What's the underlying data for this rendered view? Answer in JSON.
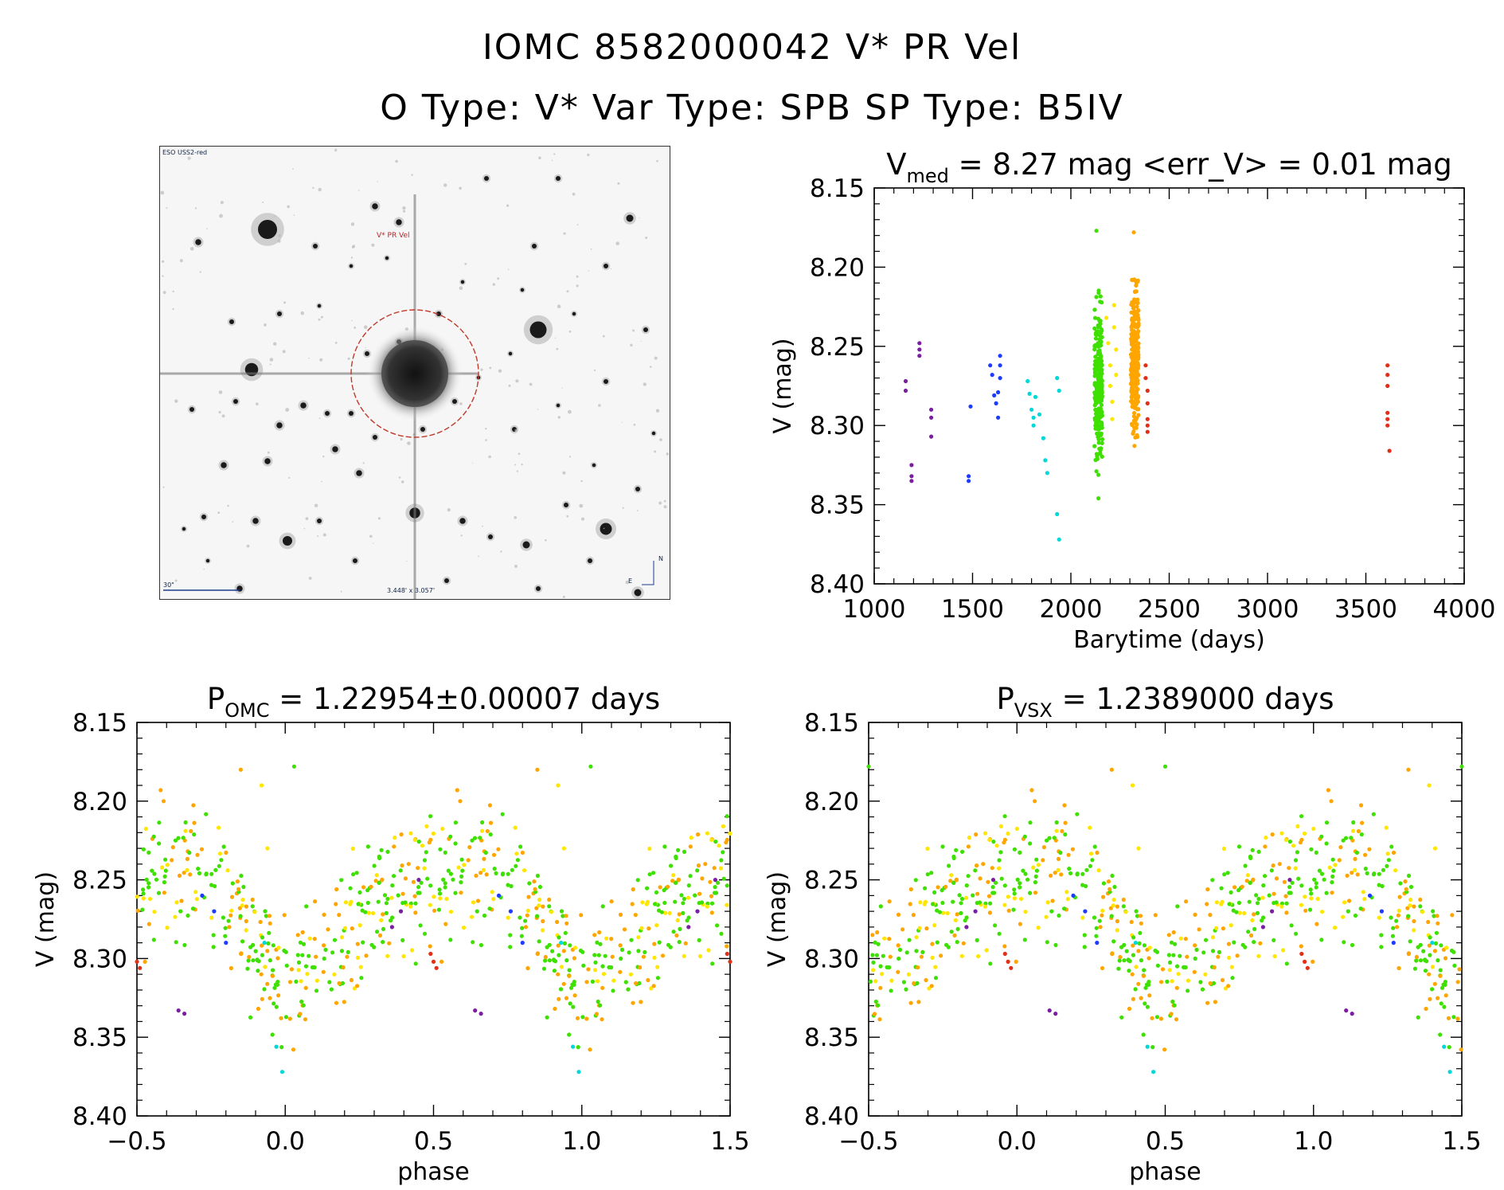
{
  "header": {
    "line1": "IOMC 8582000042   V* PR Vel",
    "line2": "O Type: V*  Var Type: SPB  SP Type: B5IV"
  },
  "finder": {
    "survey_label": "ESO USS2-red",
    "target_label": "V* PR Vel",
    "scale_label": "30\"",
    "fov_label": "3.448' x 3.057'",
    "east_label": "E",
    "north_label": "N"
  },
  "chart_data": [
    {
      "type": "scatter",
      "title_main": "V",
      "title_sub": "med",
      "title_rest": " = 8.27 mag <err_V> = 0.01 mag",
      "xlabel": "Barytime (days)",
      "ylabel": "V (mag)",
      "xlim": [
        1000,
        4000
      ],
      "ylim": [
        8.4,
        8.15
      ],
      "xticks": [
        "1000",
        "1500",
        "2000",
        "2500",
        "3000",
        "3500",
        "4000"
      ],
      "yticks": [
        "8.15",
        "8.20",
        "8.25",
        "8.30",
        "8.35",
        "8.40"
      ],
      "series": [
        {
          "color": "#7b1fa2",
          "x": [
            1160,
            1160,
            1190,
            1190,
            1190,
            1230,
            1230,
            1230,
            1290,
            1290,
            1290
          ],
          "y": [
            8.272,
            8.278,
            8.325,
            8.332,
            8.335,
            8.248,
            8.252,
            8.256,
            8.29,
            8.295,
            8.307
          ]
        },
        {
          "color": "#1e3cff",
          "x": [
            1480,
            1480,
            1490,
            1590,
            1600,
            1610,
            1620,
            1630,
            1630,
            1640,
            1640,
            1640
          ],
          "y": [
            8.332,
            8.335,
            8.288,
            8.262,
            8.268,
            8.281,
            8.286,
            8.295,
            8.279,
            8.256,
            8.262,
            8.27
          ]
        },
        {
          "color": "#00d8d8",
          "x": [
            1780,
            1790,
            1800,
            1810,
            1810,
            1820,
            1840,
            1860,
            1870,
            1880,
            1930,
            1930,
            1940,
            1940
          ],
          "y": [
            8.272,
            8.28,
            8.29,
            8.295,
            8.3,
            8.282,
            8.293,
            8.308,
            8.322,
            8.33,
            8.356,
            8.27,
            8.278,
            8.372
          ]
        },
        {
          "color": "#ffe600",
          "x": [
            2180,
            2190,
            2200,
            2200,
            2210,
            2210,
            2220,
            2220,
            2230,
            2230
          ],
          "y": [
            8.232,
            8.248,
            8.262,
            8.275,
            8.285,
            8.296,
            8.224,
            8.238,
            8.252,
            8.268
          ]
        },
        {
          "color": "#e03018",
          "x": [
            2380,
            2380,
            2390,
            2390,
            2390,
            2390,
            2390,
            3610,
            3610,
            3610,
            3610,
            3610,
            3610,
            3620
          ],
          "y": [
            8.262,
            8.27,
            8.278,
            8.286,
            8.296,
            8.3,
            8.304,
            8.262,
            8.268,
            8.275,
            8.292,
            8.296,
            8.3,
            8.316
          ]
        }
      ],
      "dense_clusters": [
        {
          "color": "#3ee000",
          "x_range": [
            2120,
            2160
          ],
          "y_range": [
            8.205,
            8.345
          ],
          "count": 240,
          "outliers": [
            [
              2130,
              8.177
            ],
            [
              2140,
              8.346
            ]
          ]
        },
        {
          "color": "#ffa500",
          "x_range": [
            2305,
            2345
          ],
          "y_range": [
            8.19,
            8.322
          ],
          "count": 260,
          "outliers": [
            [
              2320,
              8.178
            ]
          ]
        }
      ]
    },
    {
      "type": "scatter",
      "title_main": "P",
      "title_sub": "OMC",
      "title_rest": " = 1.22954±0.00007 days",
      "xlabel": "phase",
      "ylabel": "V (mag)",
      "xlim": [
        -0.5,
        1.5
      ],
      "ylim": [
        8.4,
        8.15
      ],
      "xticks": [
        "−0.5",
        "0.0",
        "0.5",
        "1.0",
        "1.5"
      ],
      "yticks": [
        "8.15",
        "8.20",
        "8.25",
        "8.30",
        "8.35",
        "8.40"
      ],
      "period": 1.22954
    },
    {
      "type": "scatter",
      "title_main": "P",
      "title_sub": "VSX",
      "title_rest": " = 1.2389000 days",
      "xlabel": "phase",
      "ylabel": "V (mag)",
      "xlim": [
        -0.5,
        1.5
      ],
      "ylim": [
        8.4,
        8.15
      ],
      "xticks": [
        "−0.5",
        "0.0",
        "0.5",
        "1.0",
        "1.5"
      ],
      "yticks": [
        "8.15",
        "8.20",
        "8.25",
        "8.30",
        "8.35",
        "8.40"
      ],
      "period": 1.2389
    }
  ],
  "colors": {
    "purple": "#7b1fa2",
    "blue": "#1e3cff",
    "cyan": "#00d8d8",
    "green": "#3ee000",
    "yellow": "#ffe600",
    "orange": "#ffa500",
    "red": "#e03018",
    "target_circle": "#c0392b"
  }
}
